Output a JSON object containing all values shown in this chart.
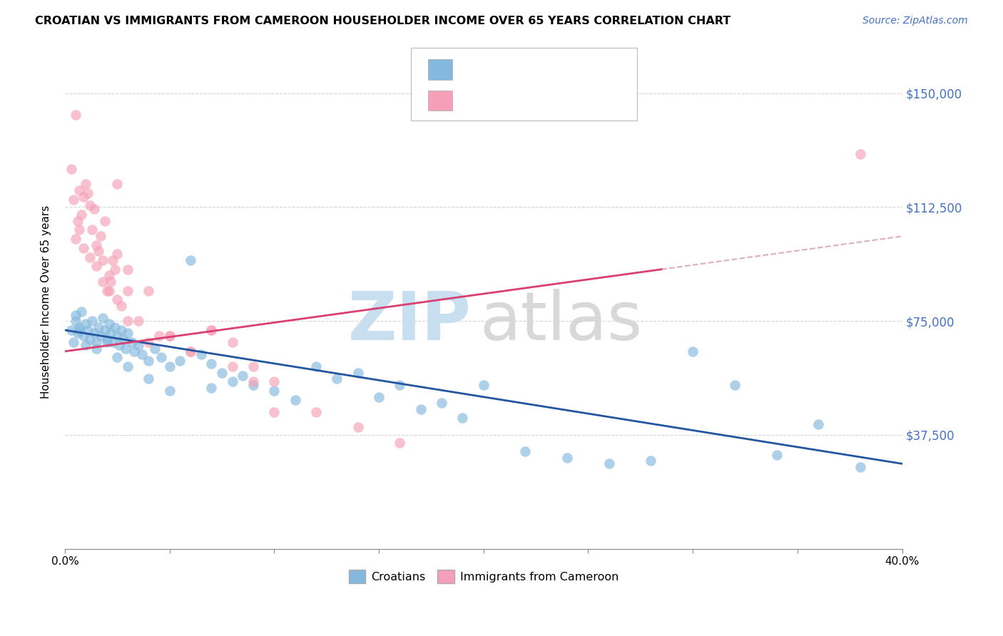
{
  "title": "CROATIAN VS IMMIGRANTS FROM CAMEROON HOUSEHOLDER INCOME OVER 65 YEARS CORRELATION CHART",
  "source": "Source: ZipAtlas.com",
  "ylabel": "Householder Income Over 65 years",
  "ytick_positions": [
    0,
    37500,
    75000,
    112500,
    150000
  ],
  "ytick_labels": [
    "",
    "$37,500",
    "$75,000",
    "$112,500",
    "$150,000"
  ],
  "xlim": [
    0.0,
    0.4
  ],
  "ylim": [
    0,
    162500
  ],
  "watermark_zip": "ZIP",
  "watermark_atlas": "atlas",
  "blue_color": "#85b8de",
  "pink_color": "#f5a0b8",
  "blue_line_color": "#2255a0",
  "pink_line_color": "#d94070",
  "dash_color": "#d8a0b0",
  "grid_color": "#cccccc",
  "right_tick_color": "#4472c4",
  "croatians_x": [
    0.003,
    0.004,
    0.005,
    0.006,
    0.007,
    0.008,
    0.009,
    0.01,
    0.011,
    0.012,
    0.013,
    0.014,
    0.015,
    0.016,
    0.017,
    0.018,
    0.019,
    0.02,
    0.021,
    0.022,
    0.023,
    0.024,
    0.025,
    0.026,
    0.027,
    0.028,
    0.029,
    0.03,
    0.032,
    0.033,
    0.035,
    0.037,
    0.04,
    0.043,
    0.046,
    0.05,
    0.055,
    0.06,
    0.065,
    0.07,
    0.075,
    0.08,
    0.085,
    0.09,
    0.1,
    0.11,
    0.12,
    0.13,
    0.14,
    0.15,
    0.16,
    0.17,
    0.18,
    0.19,
    0.2,
    0.22,
    0.24,
    0.26,
    0.28,
    0.3,
    0.32,
    0.34,
    0.36,
    0.38,
    0.005,
    0.007,
    0.01,
    0.015,
    0.02,
    0.025,
    0.03,
    0.04,
    0.05,
    0.07
  ],
  "croatians_y": [
    72000,
    68000,
    75000,
    71000,
    73000,
    78000,
    70000,
    74000,
    72000,
    69000,
    75000,
    71000,
    68000,
    73000,
    70000,
    76000,
    72000,
    69000,
    74000,
    71000,
    68000,
    73000,
    70000,
    67000,
    72000,
    69000,
    66000,
    71000,
    68000,
    65000,
    67000,
    64000,
    62000,
    66000,
    63000,
    60000,
    62000,
    95000,
    64000,
    61000,
    58000,
    55000,
    57000,
    54000,
    52000,
    49000,
    60000,
    56000,
    58000,
    50000,
    54000,
    46000,
    48000,
    43000,
    54000,
    32000,
    30000,
    28000,
    29000,
    65000,
    54000,
    31000,
    41000,
    27000,
    77000,
    72000,
    67000,
    66000,
    68000,
    63000,
    60000,
    56000,
    52000,
    53000
  ],
  "cameroon_x": [
    0.003,
    0.004,
    0.005,
    0.006,
    0.007,
    0.008,
    0.009,
    0.01,
    0.011,
    0.012,
    0.013,
    0.014,
    0.015,
    0.016,
    0.017,
    0.018,
    0.019,
    0.02,
    0.021,
    0.022,
    0.023,
    0.024,
    0.025,
    0.027,
    0.03,
    0.035,
    0.04,
    0.045,
    0.05,
    0.06,
    0.07,
    0.08,
    0.09,
    0.1,
    0.12,
    0.14,
    0.16,
    0.005,
    0.007,
    0.009,
    0.012,
    0.015,
    0.018,
    0.021,
    0.025,
    0.03,
    0.04,
    0.05,
    0.06,
    0.07,
    0.08,
    0.09,
    0.1,
    0.025,
    0.03,
    0.38
  ],
  "cameroon_y": [
    125000,
    115000,
    143000,
    108000,
    118000,
    110000,
    116000,
    120000,
    117000,
    113000,
    105000,
    112000,
    100000,
    98000,
    103000,
    95000,
    108000,
    85000,
    90000,
    88000,
    95000,
    92000,
    97000,
    80000,
    92000,
    75000,
    85000,
    70000,
    70000,
    65000,
    72000,
    68000,
    60000,
    55000,
    45000,
    40000,
    35000,
    102000,
    105000,
    99000,
    96000,
    93000,
    88000,
    85000,
    82000,
    75000,
    68000,
    70000,
    65000,
    72000,
    60000,
    55000,
    45000,
    120000,
    85000,
    130000
  ]
}
